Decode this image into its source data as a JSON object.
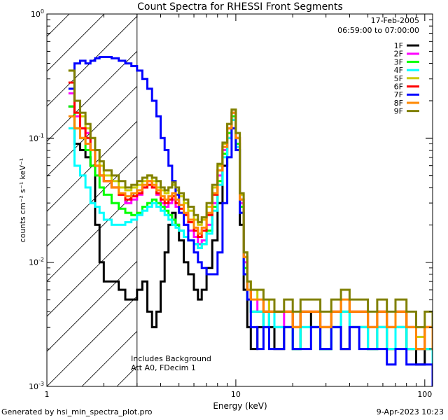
{
  "chart_data": {
    "type": "line",
    "title": "Count Spectra for RHESSI Front Segments",
    "xlabel": "Energy (keV)",
    "ylabel": "counts cm⁻² s⁻¹ keV⁻¹",
    "xscale": "log",
    "yscale": "log",
    "xlim": [
      1,
      110
    ],
    "ylim": [
      0.001,
      1
    ],
    "x_ticks": [
      {
        "value": 1,
        "label": "1"
      },
      {
        "value": 10,
        "label": "10"
      },
      {
        "value": 100,
        "label": "100"
      }
    ],
    "y_ticks": [
      {
        "value": 0.001,
        "base": "10",
        "exp": "-3"
      },
      {
        "value": 0.01,
        "base": "10",
        "exp": "-2"
      },
      {
        "value": 0.1,
        "base": "10",
        "exp": "-1"
      },
      {
        "value": 1,
        "base": "10",
        "exp": "0"
      }
    ],
    "attenuator_shading_upper_energy_kev": 3.0,
    "date": "17-Feb-2005",
    "time_range": "06:59:00 to 07:00:00",
    "annotations": [
      "Includes Background",
      "Att A0, FDecim 1"
    ],
    "energies_kev": [
      1.3,
      1.4,
      1.5,
      1.6,
      1.7,
      1.8,
      1.9,
      2.0,
      2.2,
      2.4,
      2.6,
      2.8,
      3.0,
      3.2,
      3.4,
      3.6,
      3.8,
      4.0,
      4.2,
      4.4,
      4.6,
      4.8,
      5.0,
      5.3,
      5.6,
      6.0,
      6.3,
      6.6,
      7.0,
      7.5,
      8.0,
      8.5,
      9.0,
      9.5,
      10.0,
      10.5,
      11.0,
      11.5,
      12.0,
      13.0,
      14.0,
      15.0,
      16.0,
      18.0,
      20.0,
      22.0,
      25.0,
      28.0,
      32.0,
      36.0,
      40.0,
      45.0,
      50.0,
      56.0,
      63.0,
      70.0,
      80.0,
      90.0,
      100.0,
      110.0
    ],
    "series": [
      {
        "name": "1F",
        "color": "#000000",
        "values": [
          0.18,
          0.09,
          0.08,
          0.07,
          0.06,
          0.02,
          0.01,
          0.007,
          0.007,
          0.006,
          0.005,
          0.005,
          0.006,
          0.007,
          0.004,
          0.003,
          0.004,
          0.007,
          0.012,
          0.02,
          0.025,
          0.02,
          0.015,
          0.01,
          0.008,
          0.006,
          0.005,
          0.006,
          0.009,
          0.015,
          0.03,
          0.06,
          0.1,
          0.14,
          0.08,
          0.02,
          0.006,
          0.003,
          0.002,
          0.003,
          0.004,
          0.003,
          0.002,
          0.003,
          0.002,
          0.004,
          0.003,
          0.002,
          0.003,
          0.002,
          0.003,
          0.003,
          0.002,
          0.003,
          0.002,
          0.003,
          0.002,
          0.0015,
          0.002,
          0.0015
        ]
      },
      {
        "name": "2F",
        "color": "#ff00ff",
        "values": [
          0.23,
          0.15,
          0.12,
          0.11,
          0.08,
          0.06,
          0.05,
          0.045,
          0.04,
          0.035,
          0.03,
          0.032,
          0.035,
          0.04,
          0.045,
          0.04,
          0.035,
          0.03,
          0.028,
          0.03,
          0.032,
          0.028,
          0.025,
          0.02,
          0.018,
          0.016,
          0.014,
          0.015,
          0.02,
          0.03,
          0.05,
          0.08,
          0.12,
          0.16,
          0.1,
          0.03,
          0.01,
          0.006,
          0.005,
          0.004,
          0.005,
          0.004,
          0.003,
          0.004,
          0.003,
          0.004,
          0.004,
          0.003,
          0.004,
          0.005,
          0.004,
          0.004,
          0.003,
          0.004,
          0.003,
          0.004,
          0.003,
          0.002,
          0.003,
          0.002
        ]
      },
      {
        "name": "3F",
        "color": "#00ff00",
        "values": [
          0.18,
          0.12,
          0.1,
          0.08,
          0.06,
          0.05,
          0.04,
          0.035,
          0.03,
          0.027,
          0.025,
          0.024,
          0.025,
          0.028,
          0.03,
          0.032,
          0.03,
          0.028,
          0.026,
          0.024,
          0.022,
          0.02,
          0.018,
          0.016,
          0.015,
          0.014,
          0.013,
          0.014,
          0.018,
          0.028,
          0.045,
          0.075,
          0.11,
          0.15,
          0.09,
          0.028,
          0.009,
          0.005,
          0.004,
          0.004,
          0.003,
          0.004,
          0.003,
          0.003,
          0.002,
          0.003,
          0.003,
          0.002,
          0.003,
          0.004,
          0.003,
          0.003,
          0.002,
          0.003,
          0.002,
          0.003,
          0.002,
          0.002,
          0.002,
          0.0015
        ]
      },
      {
        "name": "4F",
        "color": "#00ffff",
        "values": [
          0.12,
          0.06,
          0.05,
          0.04,
          0.03,
          0.028,
          0.025,
          0.022,
          0.02,
          0.02,
          0.021,
          0.022,
          0.024,
          0.026,
          0.028,
          0.03,
          0.028,
          0.026,
          0.024,
          0.022,
          0.02,
          0.019,
          0.018,
          0.016,
          0.015,
          0.014,
          0.013,
          0.014,
          0.017,
          0.026,
          0.042,
          0.07,
          0.1,
          0.14,
          0.085,
          0.025,
          0.008,
          0.005,
          0.004,
          0.004,
          0.003,
          0.004,
          0.003,
          0.003,
          0.002,
          0.003,
          0.003,
          0.002,
          0.003,
          0.004,
          0.003,
          0.003,
          0.002,
          0.003,
          0.002,
          0.003,
          0.002,
          0.002,
          0.002,
          0.0015
        ]
      },
      {
        "name": "5F",
        "color": "#cccc00",
        "values": [
          0.35,
          0.2,
          0.15,
          0.12,
          0.1,
          0.08,
          0.06,
          0.05,
          0.045,
          0.04,
          0.038,
          0.04,
          0.042,
          0.045,
          0.05,
          0.045,
          0.04,
          0.038,
          0.036,
          0.04,
          0.042,
          0.038,
          0.034,
          0.03,
          0.026,
          0.022,
          0.02,
          0.022,
          0.028,
          0.04,
          0.06,
          0.09,
          0.13,
          0.17,
          0.11,
          0.035,
          0.012,
          0.007,
          0.006,
          0.005,
          0.005,
          0.004,
          0.004,
          0.004,
          0.003,
          0.004,
          0.004,
          0.003,
          0.004,
          0.005,
          0.004,
          0.004,
          0.003,
          0.004,
          0.003,
          0.004,
          0.003,
          0.0025,
          0.003,
          0.002
        ]
      },
      {
        "name": "6F",
        "color": "#ff0000",
        "values": [
          0.28,
          0.16,
          0.12,
          0.1,
          0.08,
          0.06,
          0.05,
          0.045,
          0.04,
          0.035,
          0.032,
          0.034,
          0.036,
          0.04,
          0.042,
          0.04,
          0.036,
          0.032,
          0.03,
          0.032,
          0.034,
          0.03,
          0.027,
          0.024,
          0.021,
          0.018,
          0.016,
          0.018,
          0.024,
          0.035,
          0.055,
          0.085,
          0.12,
          0.16,
          0.1,
          0.032,
          0.011,
          0.006,
          0.005,
          0.005,
          0.004,
          0.004,
          0.004,
          0.004,
          0.003,
          0.004,
          0.004,
          0.003,
          0.004,
          0.005,
          0.004,
          0.004,
          0.003,
          0.004,
          0.003,
          0.004,
          0.003,
          0.002,
          0.003,
          0.002
        ]
      },
      {
        "name": "7F",
        "color": "#0000ff",
        "values": [
          0.25,
          0.4,
          0.42,
          0.4,
          0.42,
          0.44,
          0.45,
          0.45,
          0.44,
          0.42,
          0.4,
          0.38,
          0.35,
          0.3,
          0.25,
          0.2,
          0.15,
          0.1,
          0.08,
          0.06,
          0.045,
          0.035,
          0.025,
          0.02,
          0.015,
          0.012,
          0.01,
          0.009,
          0.008,
          0.008,
          0.012,
          0.03,
          0.07,
          0.12,
          0.08,
          0.025,
          0.008,
          0.005,
          0.003,
          0.002,
          0.003,
          0.002,
          0.002,
          0.003,
          0.002,
          0.002,
          0.003,
          0.002,
          0.003,
          0.002,
          0.003,
          0.002,
          0.002,
          0.002,
          0.0015,
          0.002,
          0.0015,
          0.0015,
          0.0015,
          0.001
        ]
      },
      {
        "name": "8F",
        "color": "#ff8800",
        "values": [
          0.15,
          0.12,
          0.1,
          0.09,
          0.08,
          0.06,
          0.05,
          0.045,
          0.04,
          0.036,
          0.034,
          0.036,
          0.038,
          0.042,
          0.045,
          0.042,
          0.038,
          0.034,
          0.032,
          0.034,
          0.036,
          0.032,
          0.029,
          0.025,
          0.022,
          0.019,
          0.017,
          0.019,
          0.025,
          0.036,
          0.055,
          0.085,
          0.12,
          0.16,
          0.1,
          0.032,
          0.011,
          0.006,
          0.005,
          0.005,
          0.004,
          0.004,
          0.004,
          0.004,
          0.003,
          0.004,
          0.004,
          0.003,
          0.004,
          0.005,
          0.004,
          0.004,
          0.003,
          0.004,
          0.003,
          0.004,
          0.003,
          0.002,
          0.003,
          0.002
        ]
      },
      {
        "name": "9F",
        "color": "#808000",
        "values": [
          0.35,
          0.2,
          0.16,
          0.13,
          0.1,
          0.08,
          0.065,
          0.055,
          0.05,
          0.045,
          0.04,
          0.042,
          0.045,
          0.048,
          0.05,
          0.048,
          0.045,
          0.04,
          0.038,
          0.04,
          0.044,
          0.04,
          0.036,
          0.032,
          0.028,
          0.024,
          0.021,
          0.023,
          0.03,
          0.042,
          0.062,
          0.092,
          0.13,
          0.17,
          0.11,
          0.036,
          0.012,
          0.007,
          0.006,
          0.006,
          0.005,
          0.005,
          0.004,
          0.005,
          0.004,
          0.005,
          0.005,
          0.004,
          0.005,
          0.006,
          0.005,
          0.005,
          0.004,
          0.005,
          0.004,
          0.005,
          0.004,
          0.003,
          0.004,
          0.003
        ]
      }
    ]
  },
  "footer": {
    "generated_by": "Generated by hsi_min_spectra_plot.pro",
    "timestamp": "9-Apr-2023 10:23"
  }
}
